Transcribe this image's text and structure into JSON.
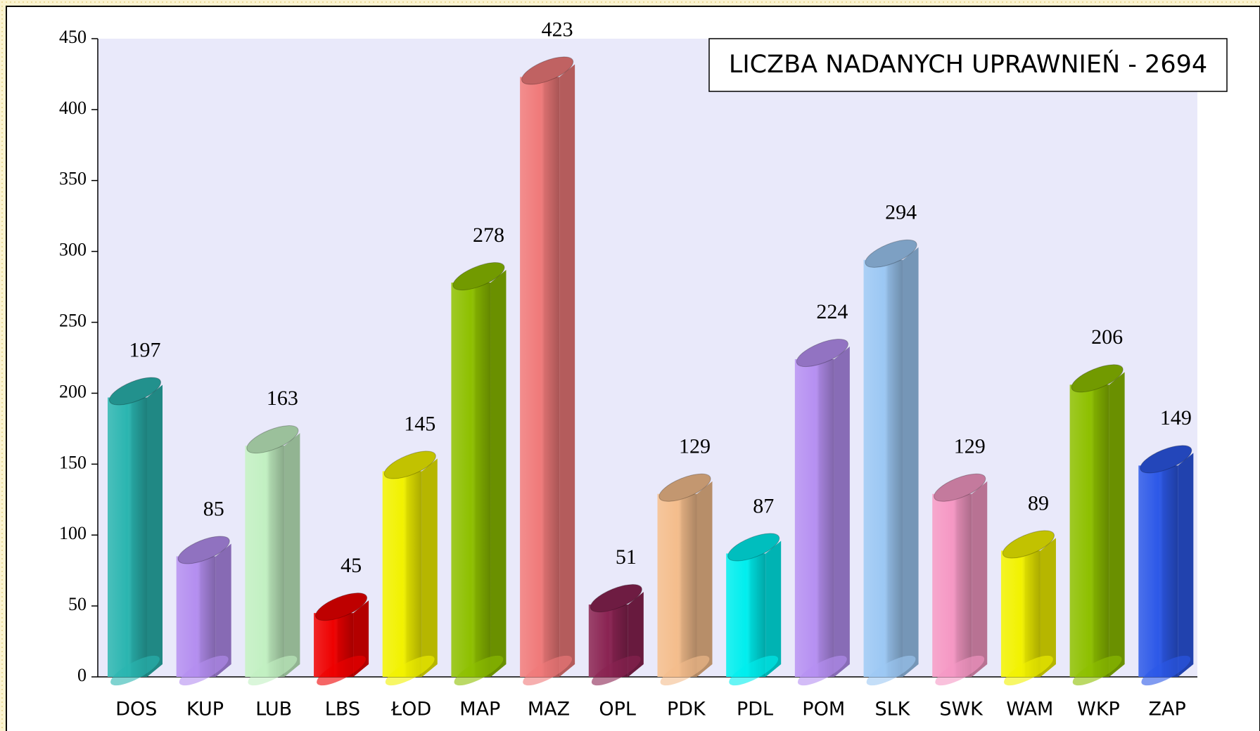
{
  "chart_data": {
    "type": "bar",
    "annotation": "LICZBA NADANYCH UPRAWNIEŃ - 2694",
    "categories": [
      "DOS",
      "KUP",
      "LUB",
      "LBS",
      "ŁOD",
      "MAP",
      "MAZ",
      "OPL",
      "PDK",
      "PDL",
      "POM",
      "SLK",
      "SWK",
      "WAM",
      "WKP",
      "ZAP"
    ],
    "values": [
      197,
      85,
      163,
      45,
      145,
      278,
      423,
      51,
      129,
      87,
      224,
      294,
      129,
      89,
      206,
      149
    ],
    "colors": [
      "#2ab5b0",
      "#b48ef0",
      "#c2f0c2",
      "#ee0000",
      "#f2f200",
      "#8ec000",
      "#f07a7a",
      "#8a2352",
      "#f4bd8c",
      "#00eeee",
      "#b690f2",
      "#9cc8f4",
      "#f598c4",
      "#f2f200",
      "#8ec000",
      "#2c58e8"
    ],
    "ylim": [
      0,
      450
    ],
    "yticks": [
      0,
      50,
      100,
      150,
      200,
      250,
      300,
      350,
      400,
      450
    ]
  }
}
